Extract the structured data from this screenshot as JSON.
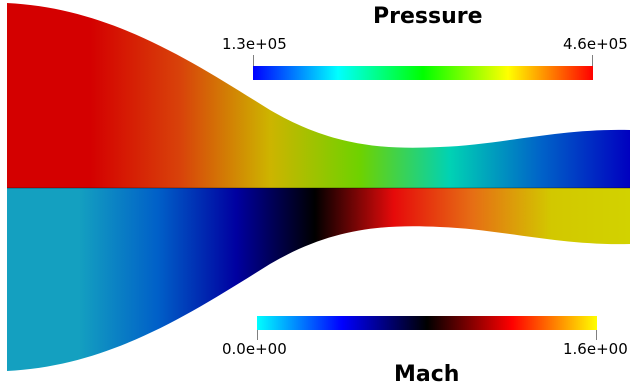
{
  "scene": {
    "background_color": "#ffffff"
  },
  "pressure_bar": {
    "title": "Pressure",
    "min_label": "1.3e+05",
    "max_label": "4.6e+05",
    "colormap": [
      "#0000ff",
      "#00ffff",
      "#00ff00",
      "#ffff00",
      "#ff0000"
    ]
  },
  "mach_bar": {
    "title": "Mach",
    "min_label": "0.0e+00",
    "max_label": "1.6e+00",
    "colormap": [
      "#00ffff",
      "#0000ff",
      "#000000",
      "#ff0000",
      "#ffff00"
    ]
  },
  "fields": {
    "pressure_upper_half": {
      "colors": [
        "#d40000",
        "#d40000",
        "#d8420a",
        "#cdb400",
        "#6ed200",
        "#00d2b4",
        "#0064c8",
        "#0000c0"
      ]
    },
    "mach_lower_half": {
      "colors": [
        "#14a0c0",
        "#14a0c0",
        "#0060c8",
        "#0000a0",
        "#000000",
        "#e60a0a",
        "#e66e14",
        "#d2c800",
        "#d2d200"
      ]
    }
  }
}
